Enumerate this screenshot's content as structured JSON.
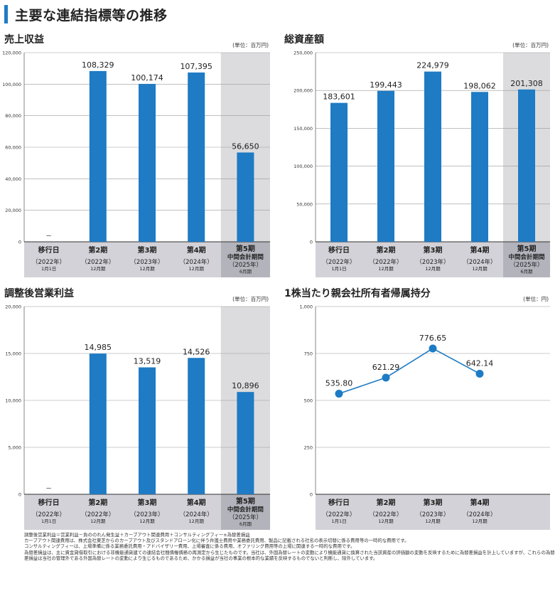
{
  "page": {
    "title": "主要な連結指標等の推移"
  },
  "category_labels": [
    {
      "name": "移行日",
      "year": "（2022年）",
      "sub": "1月1日"
    },
    {
      "name": "第2期",
      "year": "（2022年）",
      "sub": "12月期"
    },
    {
      "name": "第3期",
      "year": "（2023年）",
      "sub": "12月期"
    },
    {
      "name": "第4期",
      "year": "（2024年）",
      "sub": "12月期"
    },
    {
      "name": "第5期",
      "name2": "中間会計期間",
      "year": "（2025年）",
      "sub": "6月期"
    }
  ],
  "chart_data": [
    {
      "type": "bar",
      "title": "売上収益",
      "unit": "(単位：百万円)",
      "categories": [
        "移行日",
        "第2期",
        "第3期",
        "第4期",
        "第5期 中間会計期間"
      ],
      "values": [
        null,
        108329,
        100174,
        107395,
        56650
      ],
      "value_labels": [
        "－",
        "108,329",
        "100,174",
        "107,395",
        "56,650"
      ],
      "ylim": [
        0,
        120000
      ],
      "yticks": [
        0,
        20000,
        40000,
        60000,
        80000,
        100000,
        120000
      ],
      "ytick_labels": [
        "0",
        "20,000",
        "40,000",
        "60,000",
        "80,000",
        "100,000",
        "120,000"
      ],
      "highlight_last": true,
      "grid": true
    },
    {
      "type": "bar",
      "title": "総資産額",
      "unit": "(単位：百万円)",
      "categories": [
        "移行日",
        "第2期",
        "第3期",
        "第4期",
        "第5期 中間会計期間"
      ],
      "values": [
        183601,
        199443,
        224979,
        198062,
        201308
      ],
      "value_labels": [
        "183,601",
        "199,443",
        "224,979",
        "198,062",
        "201,308"
      ],
      "ylim": [
        0,
        250000
      ],
      "yticks": [
        0,
        50000,
        100000,
        150000,
        200000,
        250000
      ],
      "ytick_labels": [
        "0",
        "50,000",
        "100,000",
        "150,000",
        "200,000",
        "250,000"
      ],
      "highlight_last": true,
      "grid": true
    },
    {
      "type": "bar",
      "title": "調整後営業利益",
      "unit": "(単位：百万円)",
      "categories": [
        "移行日",
        "第2期",
        "第3期",
        "第4期",
        "第5期 中間会計期間"
      ],
      "values": [
        null,
        14985,
        13519,
        14526,
        10896
      ],
      "value_labels": [
        "－",
        "14,985",
        "13,519",
        "14,526",
        "10,896"
      ],
      "ylim": [
        0,
        20000
      ],
      "yticks": [
        0,
        5000,
        10000,
        15000,
        20000
      ],
      "ytick_labels": [
        "0",
        "5,000",
        "10,000",
        "15,000",
        "20,000"
      ],
      "highlight_last": true,
      "grid": true
    },
    {
      "type": "line",
      "title": "1株当たり親会社所有者帰属持分",
      "unit": "(単位：円)",
      "categories": [
        "移行日",
        "第2期",
        "第3期",
        "第4期"
      ],
      "values": [
        535.8,
        621.29,
        776.65,
        642.14
      ],
      "value_labels": [
        "535.80",
        "621.29",
        "776.65",
        "642.14"
      ],
      "ylim": [
        0,
        1000
      ],
      "yticks": [
        0,
        250,
        500,
        750,
        1000
      ],
      "ytick_labels": [
        "0",
        "250",
        "500",
        "750",
        "1,000"
      ],
      "highlight_last": false,
      "grid": true
    }
  ],
  "footnotes": [
    "調整後営業利益＝営業利益－負ののれん発生益＋カーブアウト関連費用＋コンサルティングフィー±為替差損益",
    "カーブアウト関連費用は、株式会社東芝からのカーブアウト及びスタンドアローン化に伴う弁護士費用や業務委託費用、製品に記載される社名の表示切替に係る費用等の一時的な費用です。",
    "コンサルティングフィーは、上場準備に係る業務委託費用・アドバイザリー費用、上場審査に係る費用、オファリング費用等の上場に関連する一時的な費用です。",
    "為替差損益は、主に資金貸借取引における非機能通貨建ての連結会社間債権債務の再測定から生じたものです。当社は、外国為替レートの変動により機能通貨に換算された当該資産の評価額の変動を反映するために為替差損益を計上していますが、これらの為替差損益は当社の管理外である外国為替レートの変動により生じるものであるため、かかる損益が当社の事業の根本的な業績を反映するものでないと判断し、除外しています。"
  ],
  "colors": {
    "accent": "#1e7bc4",
    "bar": "#1e7bc4",
    "panel_highlight": "#dcdcde",
    "label_band": "#d2d2d8",
    "label_band_highlight": "#b3b3bc",
    "grid": "#9a9a9a"
  }
}
